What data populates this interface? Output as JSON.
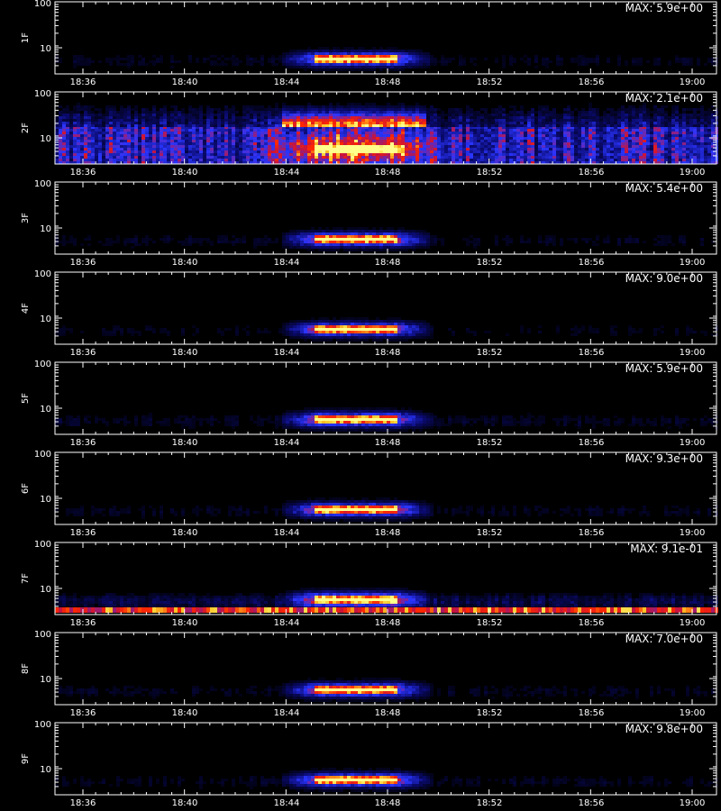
{
  "chart_data": {
    "type": "heatmap",
    "x_ticks": [
      "18:36",
      "18:40",
      "18:44",
      "18:48",
      "18:52",
      "18:56",
      "19:00"
    ],
    "y_ticks": [
      "10",
      "100"
    ],
    "colors": {
      "background": "#000000",
      "axis": "#ffffff",
      "low": "#0a0a6e",
      "mid": "#2a35ff",
      "high": "#ff1a00",
      "peak": "#ffff55"
    },
    "panels": [
      {
        "label": "1F",
        "max_text": "MAX: 5.9e+00",
        "noise": 0.06,
        "width": 1.0,
        "spread": 0.35,
        "stripes": false
      },
      {
        "label": "2F",
        "max_text": "MAX: 2.1e+00",
        "noise": 0.42,
        "width": 1.5,
        "spread": 1.0,
        "stripes": false
      },
      {
        "label": "3F",
        "max_text": "MAX: 5.4e+00",
        "noise": 0.06,
        "width": 1.0,
        "spread": 0.35,
        "stripes": false
      },
      {
        "label": "4F",
        "max_text": "MAX: 9.0e+00",
        "noise": 0.05,
        "width": 1.0,
        "spread": 0.35,
        "stripes": false
      },
      {
        "label": "5F",
        "max_text": "MAX: 5.9e+00",
        "noise": 0.07,
        "width": 1.05,
        "spread": 0.38,
        "stripes": false
      },
      {
        "label": "6F",
        "max_text": "MAX: 9.3e+00",
        "noise": 0.06,
        "width": 1.0,
        "spread": 0.35,
        "stripes": false
      },
      {
        "label": "7F",
        "max_text": "MAX: 9.1e-01",
        "noise": 0.14,
        "width": 1.0,
        "spread": 0.4,
        "stripes": true
      },
      {
        "label": "8F",
        "max_text": "MAX: 7.0e+00",
        "noise": 0.06,
        "width": 1.0,
        "spread": 0.35,
        "stripes": false
      },
      {
        "label": "9F",
        "max_text": "MAX: 9.8e+00",
        "noise": 0.06,
        "width": 1.0,
        "spread": 0.35,
        "stripes": false
      }
    ]
  }
}
